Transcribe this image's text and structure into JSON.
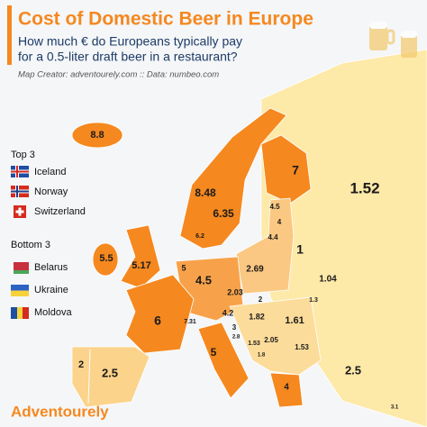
{
  "header": {
    "title": "Cost of Domestic Beer in Europe",
    "subtitle": [
      "How much € do Europeans typically pay",
      "for a 0.5-liter draft beer in a restaurant?"
    ],
    "credit": "Map Creator: adventourely.com :: Data: numbeo.com"
  },
  "top3": {
    "heading": "Top 3",
    "items": [
      "Iceland",
      "Norway",
      "Switzerland"
    ]
  },
  "bottom3": {
    "heading": "Bottom 3",
    "items": [
      "Belarus",
      "Ukraine",
      "Moldova"
    ]
  },
  "prices": [
    8.8,
    7,
    8.48,
    6.35,
    1.52,
    4.5,
    4,
    4.4,
    6.2,
    1,
    5.5,
    5.17,
    5,
    4.5,
    2.69,
    1.04,
    2.03,
    2,
    1.3,
    1.82,
    1.61,
    4.2,
    7.31,
    3,
    2.8,
    2.05,
    1.53,
    1.53,
    1.8,
    6,
    5,
    2,
    2.5,
    4,
    2.5,
    3.1
  ],
  "logo": "Adventourely"
}
